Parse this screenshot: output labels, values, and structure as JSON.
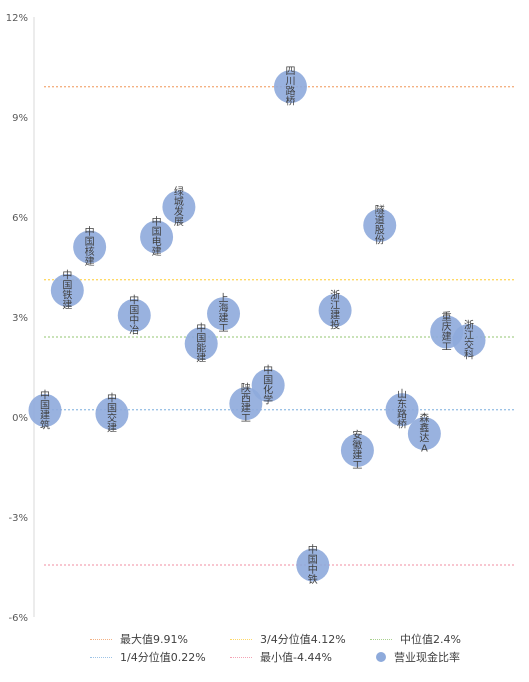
{
  "chart_data": {
    "type": "scatter",
    "y_axis": {
      "min": -6,
      "max": 12,
      "step": 3,
      "unit": "%"
    },
    "y_tick_labels": [
      "12%",
      "9%",
      "6%",
      "3%",
      "0%",
      "-3%",
      "-6%"
    ],
    "series": [
      {
        "name": "营业现金比率",
        "color": "#8eaadb",
        "points": [
          {
            "label": "中国建筑",
            "y": 0.2
          },
          {
            "label": "中国铁建",
            "y": 3.8
          },
          {
            "label": "中国核建",
            "y": 5.1
          },
          {
            "label": "中国交建",
            "y": 0.1
          },
          {
            "label": "中国中冶",
            "y": 3.05
          },
          {
            "label": "中国电建",
            "y": 5.4
          },
          {
            "label": "绿城发展",
            "y": 6.3
          },
          {
            "label": "中国能建",
            "y": 2.2
          },
          {
            "label": "上海建工",
            "y": 3.1
          },
          {
            "label": "陕西建工",
            "y": 0.4
          },
          {
            "label": "中国化学",
            "y": 0.95
          },
          {
            "label": "四川路桥",
            "y": 9.91
          },
          {
            "label": "中国中铁",
            "y": -4.44
          },
          {
            "label": "浙江建投",
            "y": 3.2
          },
          {
            "label": "安徽建工",
            "y": -1.0
          },
          {
            "label": "隧道股份",
            "y": 5.75
          },
          {
            "label": "山东路桥",
            "y": 0.22
          },
          {
            "label": "森鑫达A",
            "y": -0.5
          },
          {
            "label": "重庆建工",
            "y": 2.55
          },
          {
            "label": "浙江交科",
            "y": 2.3
          }
        ]
      }
    ],
    "reference_lines": [
      {
        "key": "max",
        "label": "最大值9.91%",
        "value": 9.91,
        "color": "#f4b183"
      },
      {
        "key": "q3",
        "label": "3/4分位值4.12%",
        "value": 4.12,
        "color": "#ffd966"
      },
      {
        "key": "median",
        "label": "中位值2.4%",
        "value": 2.4,
        "color": "#a9d18e"
      },
      {
        "key": "q1",
        "label": "1/4分位值0.22%",
        "value": 0.22,
        "color": "#9dc3e6"
      },
      {
        "key": "min",
        "label": "最小值-4.44%",
        "value": -4.44,
        "color": "#f4a3b4"
      }
    ],
    "legend_position": "bottom",
    "grid": false
  }
}
